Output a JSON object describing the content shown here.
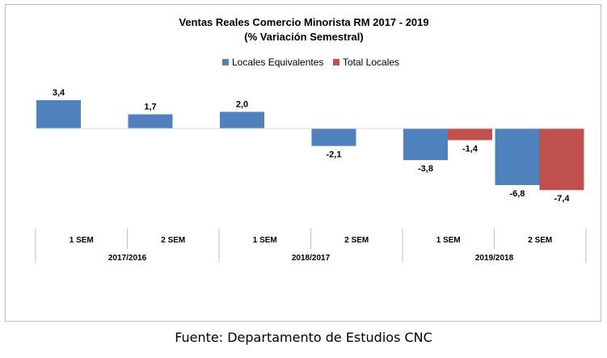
{
  "chart_data": {
    "type": "bar",
    "title": "Ventas Reales Comercio Minorista  RM 2017 - 2019",
    "subtitle": "(% Variación Semestral)",
    "legend_position": "top-center",
    "grid": false,
    "ylim": [
      -9,
      5
    ],
    "groups": [
      "2017/2016",
      "2018/2017",
      "2019/2018"
    ],
    "categories": [
      {
        "group": 0,
        "label": "1 SEM"
      },
      {
        "group": 0,
        "label": "2 SEM"
      },
      {
        "group": 1,
        "label": "1 SEM"
      },
      {
        "group": 1,
        "label": "2 SEM"
      },
      {
        "group": 2,
        "label": "1 SEM"
      },
      {
        "group": 2,
        "label": "2 SEM"
      }
    ],
    "series": [
      {
        "name": "Locales Equivalentes",
        "color": "#4f81bd",
        "values": [
          3.4,
          1.7,
          2.0,
          -2.1,
          -3.8,
          -6.8
        ],
        "labels": [
          "3,4",
          "1,7",
          "2,0",
          "-2,1",
          "-3,8",
          "-6,8"
        ]
      },
      {
        "name": "Total Locales",
        "color": "#c0504d",
        "values": [
          null,
          null,
          null,
          null,
          -1.4,
          -7.4
        ],
        "labels": [
          "",
          "",
          "",
          "",
          "-1,4",
          "-7,4"
        ]
      }
    ]
  },
  "source": "Fuente: Departamento de Estudios CNC"
}
